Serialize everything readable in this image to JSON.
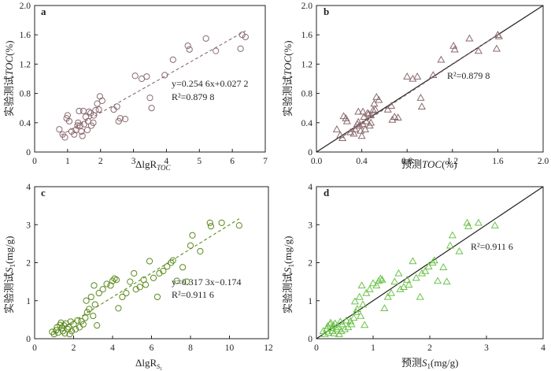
{
  "colors": {
    "ink": "#231f20",
    "brown": "#8a6a6e",
    "olive": "#5c8a1e",
    "green": "#6cc24a",
    "axis": "#231f20"
  },
  "chart_data": [
    {
      "panel": "a",
      "type": "scatter",
      "xlabel": "ΔlgR_TOC",
      "ylabel": "实验测试TOC(%)",
      "xlim": [
        0,
        7
      ],
      "ylim": [
        0,
        2.0
      ],
      "xticks": [
        0,
        1,
        2,
        3,
        4,
        5,
        6,
        7
      ],
      "yticks": [
        0,
        0.4,
        0.8,
        1.2,
        1.6,
        2.0
      ],
      "xtick_labels": [
        "0",
        "1",
        "2",
        "3",
        "4",
        "5",
        "6",
        "7"
      ],
      "ytick_labels": [
        "0",
        "0.4",
        "0.8",
        "1.2",
        "1.6",
        "2.0"
      ],
      "marker": "circle",
      "marker_color": "#8a6a6e",
      "fit": {
        "style": "dashed",
        "color": "#8a6a6e",
        "x": [
          0.8,
          6.4
        ],
        "y": [
          0.231,
          1.655
        ]
      },
      "equation": "y=0.254 6x+0.027 2",
      "r2": "R²=0.879 8",
      "points": [
        [
          0.75,
          0.31
        ],
        [
          0.85,
          0.24
        ],
        [
          0.92,
          0.2
        ],
        [
          0.97,
          0.46
        ],
        [
          1.0,
          0.5
        ],
        [
          1.05,
          0.42
        ],
        [
          1.12,
          0.28
        ],
        [
          1.2,
          0.24
        ],
        [
          1.25,
          0.3
        ],
        [
          1.3,
          0.36
        ],
        [
          1.32,
          0.4
        ],
        [
          1.35,
          0.56
        ],
        [
          1.38,
          0.36
        ],
        [
          1.42,
          0.28
        ],
        [
          1.45,
          0.22
        ],
        [
          1.48,
          0.56
        ],
        [
          1.5,
          0.38
        ],
        [
          1.55,
          0.48
        ],
        [
          1.6,
          0.3
        ],
        [
          1.62,
          0.42
        ],
        [
          1.65,
          0.55
        ],
        [
          1.7,
          0.53
        ],
        [
          1.72,
          0.36
        ],
        [
          1.78,
          0.4
        ],
        [
          1.8,
          0.5
        ],
        [
          1.85,
          0.57
        ],
        [
          1.9,
          0.66
        ],
        [
          1.95,
          0.58
        ],
        [
          1.98,
          0.76
        ],
        [
          2.05,
          0.7
        ],
        [
          2.4,
          0.58
        ],
        [
          2.5,
          0.62
        ],
        [
          2.55,
          0.42
        ],
        [
          2.6,
          0.46
        ],
        [
          2.75,
          0.45
        ],
        [
          3.05,
          1.04
        ],
        [
          3.25,
          1.0
        ],
        [
          3.4,
          1.03
        ],
        [
          3.5,
          0.74
        ],
        [
          3.55,
          0.6
        ],
        [
          3.95,
          1.05
        ],
        [
          4.2,
          1.26
        ],
        [
          4.65,
          1.45
        ],
        [
          4.7,
          1.4
        ],
        [
          5.2,
          1.55
        ],
        [
          5.5,
          1.38
        ],
        [
          6.25,
          1.41
        ],
        [
          6.3,
          1.6
        ],
        [
          6.4,
          1.57
        ]
      ]
    },
    {
      "panel": "b",
      "type": "scatter",
      "xlabel": "预测TOC(%)",
      "ylabel": "实验测试TOC(%)",
      "xlim": [
        0,
        2.0
      ],
      "ylim": [
        0,
        2.0
      ],
      "xticks": [
        0,
        0.4,
        0.8,
        1.2,
        1.6,
        2.0
      ],
      "yticks": [
        0,
        0.4,
        0.8,
        1.2,
        1.6,
        2.0
      ],
      "xtick_labels": [
        "0.0",
        "0.4",
        "0.8",
        "1.2",
        "1.6",
        "2.0"
      ],
      "ytick_labels": [
        "0",
        "0.4",
        "0.8",
        "1.2",
        "1.6",
        "2.0"
      ],
      "marker": "triangle",
      "marker_color": "#8a6a6e",
      "identity": {
        "style": "solid",
        "color": "#231f20",
        "x": [
          0,
          2.0
        ],
        "y": [
          0,
          2.0
        ]
      },
      "fit": {
        "style": "dashed",
        "color": "#8a6a6e",
        "x": [
          0.2,
          1.6
        ],
        "y": [
          0.18,
          1.6
        ]
      },
      "r2": "R²=0.879 8",
      "points": [
        [
          0.18,
          0.31
        ],
        [
          0.21,
          0.23
        ],
        [
          0.23,
          0.19
        ],
        [
          0.24,
          0.49
        ],
        [
          0.26,
          0.46
        ],
        [
          0.27,
          0.42
        ],
        [
          0.3,
          0.27
        ],
        [
          0.33,
          0.25
        ],
        [
          0.34,
          0.31
        ],
        [
          0.36,
          0.38
        ],
        [
          0.37,
          0.41
        ],
        [
          0.37,
          0.55
        ],
        [
          0.38,
          0.36
        ],
        [
          0.39,
          0.29
        ],
        [
          0.4,
          0.22
        ],
        [
          0.41,
          0.55
        ],
        [
          0.41,
          0.38
        ],
        [
          0.42,
          0.48
        ],
        [
          0.43,
          0.31
        ],
        [
          0.44,
          0.42
        ],
        [
          0.45,
          0.53
        ],
        [
          0.46,
          0.52
        ],
        [
          0.47,
          0.36
        ],
        [
          0.48,
          0.4
        ],
        [
          0.48,
          0.5
        ],
        [
          0.5,
          0.57
        ],
        [
          0.51,
          0.66
        ],
        [
          0.52,
          0.58
        ],
        [
          0.53,
          0.75
        ],
        [
          0.55,
          0.71
        ],
        [
          0.63,
          0.58
        ],
        [
          0.66,
          0.63
        ],
        [
          0.67,
          0.44
        ],
        [
          0.69,
          0.48
        ],
        [
          0.72,
          0.47
        ],
        [
          0.8,
          1.03
        ],
        [
          0.85,
          1.0
        ],
        [
          0.89,
          1.03
        ],
        [
          0.92,
          0.74
        ],
        [
          0.93,
          0.62
        ],
        [
          1.03,
          1.05
        ],
        [
          1.1,
          1.26
        ],
        [
          1.21,
          1.45
        ],
        [
          1.22,
          1.4
        ],
        [
          1.35,
          1.55
        ],
        [
          1.43,
          1.38
        ],
        [
          1.59,
          1.41
        ],
        [
          1.6,
          1.6
        ],
        [
          1.61,
          1.58
        ]
      ]
    },
    {
      "panel": "c",
      "type": "scatter",
      "xlabel": "ΔlgR_S1",
      "ylabel": "实验测试S1(mg/g)",
      "xlim": [
        0,
        12
      ],
      "ylim": [
        0,
        4
      ],
      "xticks": [
        0,
        2,
        4,
        6,
        8,
        10,
        12
      ],
      "yticks": [
        0,
        1,
        2,
        3,
        4
      ],
      "xtick_labels": [
        "0",
        "2",
        "4",
        "6",
        "8",
        "10",
        "12"
      ],
      "ytick_labels": [
        "0",
        "1",
        "2",
        "3",
        "4"
      ],
      "marker": "circle",
      "marker_color": "#5c8a1e",
      "fit": {
        "style": "dashed",
        "color": "#5c8a1e",
        "x": [
          1.0,
          10.5
        ],
        "y": [
          0.143,
          3.155
        ]
      },
      "equation": "y=0.317 3x−0.174",
      "r2": "R²=0.911 6",
      "points": [
        [
          0.9,
          0.18
        ],
        [
          1.0,
          0.12
        ],
        [
          1.1,
          0.22
        ],
        [
          1.15,
          0.3
        ],
        [
          1.2,
          0.16
        ],
        [
          1.3,
          0.36
        ],
        [
          1.35,
          0.42
        ],
        [
          1.4,
          0.28
        ],
        [
          1.45,
          0.2
        ],
        [
          1.5,
          0.35
        ],
        [
          1.55,
          0.14
        ],
        [
          1.6,
          0.4
        ],
        [
          1.7,
          0.25
        ],
        [
          1.75,
          0.3
        ],
        [
          1.8,
          0.12
        ],
        [
          1.85,
          0.45
        ],
        [
          1.9,
          0.2
        ],
        [
          2.0,
          0.38
        ],
        [
          2.1,
          0.25
        ],
        [
          2.2,
          0.48
        ],
        [
          2.3,
          0.3
        ],
        [
          2.4,
          0.46
        ],
        [
          2.5,
          0.38
        ],
        [
          2.6,
          0.55
        ],
        [
          2.65,
          1.0
        ],
        [
          2.7,
          0.7
        ],
        [
          2.8,
          0.78
        ],
        [
          2.9,
          1.1
        ],
        [
          3.0,
          0.6
        ],
        [
          3.05,
          1.4
        ],
        [
          3.1,
          0.9
        ],
        [
          3.2,
          0.35
        ],
        [
          3.3,
          1.2
        ],
        [
          3.5,
          1.3
        ],
        [
          3.7,
          1.44
        ],
        [
          3.9,
          1.4
        ],
        [
          4.0,
          1.52
        ],
        [
          4.1,
          1.58
        ],
        [
          4.2,
          1.55
        ],
        [
          4.3,
          0.8
        ],
        [
          4.5,
          1.1
        ],
        [
          4.7,
          1.2
        ],
        [
          4.9,
          1.5
        ],
        [
          5.1,
          1.72
        ],
        [
          5.2,
          1.3
        ],
        [
          5.4,
          1.36
        ],
        [
          5.6,
          1.55
        ],
        [
          5.7,
          1.42
        ],
        [
          5.9,
          2.04
        ],
        [
          6.1,
          1.6
        ],
        [
          6.3,
          1.1
        ],
        [
          6.4,
          1.72
        ],
        [
          6.6,
          1.78
        ],
        [
          6.8,
          1.9
        ],
        [
          7.0,
          2.0
        ],
        [
          7.1,
          2.06
        ],
        [
          7.3,
          1.52
        ],
        [
          7.6,
          1.88
        ],
        [
          7.8,
          1.5
        ],
        [
          8.0,
          2.45
        ],
        [
          8.1,
          2.72
        ],
        [
          8.5,
          2.3
        ],
        [
          9.0,
          3.05
        ],
        [
          9.05,
          2.96
        ],
        [
          9.6,
          3.05
        ],
        [
          10.5,
          2.98
        ]
      ]
    },
    {
      "panel": "d",
      "type": "scatter",
      "xlabel": "预测S1(mg/g)",
      "ylabel": "实验测试S1(mg/g)",
      "xlim": [
        0,
        4
      ],
      "ylim": [
        0,
        4
      ],
      "xticks": [
        0,
        1,
        2,
        3,
        4
      ],
      "yticks": [
        0,
        1,
        2,
        3,
        4
      ],
      "xtick_labels": [
        "0",
        "1",
        "2",
        "3",
        "4"
      ],
      "ytick_labels": [
        "0",
        "1",
        "2",
        "3",
        "4"
      ],
      "marker": "triangle",
      "marker_color": "#6cc24a",
      "identity": {
        "style": "solid",
        "color": "#231f20",
        "x": [
          0,
          4
        ],
        "y": [
          0,
          4
        ]
      },
      "r2": "R²=0.911 6",
      "points": [
        [
          0.12,
          0.2
        ],
        [
          0.15,
          0.12
        ],
        [
          0.18,
          0.26
        ],
        [
          0.2,
          0.33
        ],
        [
          0.21,
          0.16
        ],
        [
          0.24,
          0.38
        ],
        [
          0.25,
          0.42
        ],
        [
          0.27,
          0.28
        ],
        [
          0.28,
          0.2
        ],
        [
          0.3,
          0.35
        ],
        [
          0.31,
          0.14
        ],
        [
          0.33,
          0.4
        ],
        [
          0.36,
          0.25
        ],
        [
          0.38,
          0.3
        ],
        [
          0.4,
          0.12
        ],
        [
          0.42,
          0.45
        ],
        [
          0.44,
          0.2
        ],
        [
          0.46,
          0.38
        ],
        [
          0.5,
          0.25
        ],
        [
          0.53,
          0.48
        ],
        [
          0.56,
          0.3
        ],
        [
          0.6,
          0.46
        ],
        [
          0.62,
          0.38
        ],
        [
          0.66,
          0.55
        ],
        [
          0.68,
          0.98
        ],
        [
          0.7,
          0.7
        ],
        [
          0.72,
          0.78
        ],
        [
          0.76,
          1.1
        ],
        [
          0.78,
          0.6
        ],
        [
          0.8,
          1.4
        ],
        [
          0.82,
          0.9
        ],
        [
          0.85,
          0.36
        ],
        [
          0.88,
          1.2
        ],
        [
          0.94,
          1.3
        ],
        [
          1.0,
          1.46
        ],
        [
          1.06,
          1.4
        ],
        [
          1.1,
          1.52
        ],
        [
          1.13,
          1.58
        ],
        [
          1.16,
          1.55
        ],
        [
          1.2,
          0.8
        ],
        [
          1.26,
          1.1
        ],
        [
          1.32,
          1.2
        ],
        [
          1.38,
          1.5
        ],
        [
          1.45,
          1.72
        ],
        [
          1.48,
          1.3
        ],
        [
          1.54,
          1.36
        ],
        [
          1.6,
          1.55
        ],
        [
          1.63,
          1.42
        ],
        [
          1.7,
          2.04
        ],
        [
          1.76,
          1.6
        ],
        [
          1.83,
          1.1
        ],
        [
          1.86,
          1.72
        ],
        [
          1.92,
          1.78
        ],
        [
          1.98,
          1.9
        ],
        [
          2.05,
          2.0
        ],
        [
          2.08,
          2.06
        ],
        [
          2.14,
          1.52
        ],
        [
          2.24,
          1.88
        ],
        [
          2.3,
          1.5
        ],
        [
          2.36,
          2.45
        ],
        [
          2.4,
          2.72
        ],
        [
          2.52,
          2.3
        ],
        [
          2.66,
          3.05
        ],
        [
          2.68,
          2.96
        ],
        [
          2.86,
          3.05
        ],
        [
          3.15,
          2.98
        ]
      ]
    }
  ]
}
